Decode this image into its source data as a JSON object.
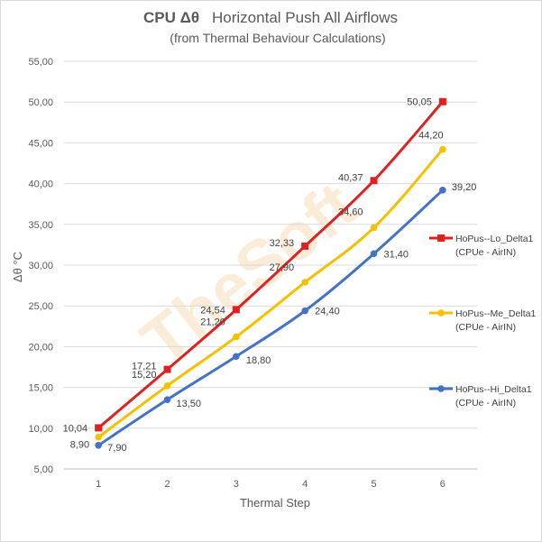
{
  "chart_data": {
    "type": "line",
    "title_bold": "CPU  Δθ",
    "title_rest": "Horizontal Push All Airflows",
    "subtitle": "(from Thermal Behaviour Calculations)",
    "xlabel": "Thermal Step",
    "ylabel": "Δθ °C",
    "categories": [
      "1",
      "2",
      "3",
      "4",
      "5",
      "6"
    ],
    "ylim": [
      5,
      55
    ],
    "yticks": [
      "5,00",
      "10,00",
      "15,00",
      "20,00",
      "25,00",
      "30,00",
      "35,00",
      "40,00",
      "45,00",
      "50,00",
      "55,00"
    ],
    "grid": true,
    "legend_position": "right",
    "watermark": "TheSoft",
    "series": [
      {
        "name": "HoPus--Lo_Delta1",
        "name_line2": "(CPUe - AirIN)",
        "color": "#e02020",
        "marker": "square",
        "values": [
          10.04,
          17.21,
          24.54,
          32.33,
          40.37,
          50.05
        ],
        "labels": [
          "10,04",
          "17,21",
          "24,54",
          "32,33",
          "40,37",
          "50,05"
        ]
      },
      {
        "name": "HoPus--Me_Delta1",
        "name_line2": "(CPUe - AirIN)",
        "color": "#f5c000",
        "marker": "circle",
        "values": [
          8.9,
          15.2,
          21.2,
          27.9,
          34.6,
          44.2
        ],
        "labels": [
          "8,90",
          "15,20",
          "21,20",
          "27,90",
          "34,60",
          "44,20"
        ]
      },
      {
        "name": "HoPus--Hi_Delta1",
        "name_line2": "(CPUe - AirIN)",
        "color": "#4472c4",
        "marker": "circle",
        "values": [
          7.9,
          13.5,
          18.8,
          24.4,
          31.4,
          39.2
        ],
        "labels": [
          "7,90",
          "13,50",
          "18,80",
          "24,40",
          "31,40",
          "39,20"
        ]
      }
    ]
  }
}
